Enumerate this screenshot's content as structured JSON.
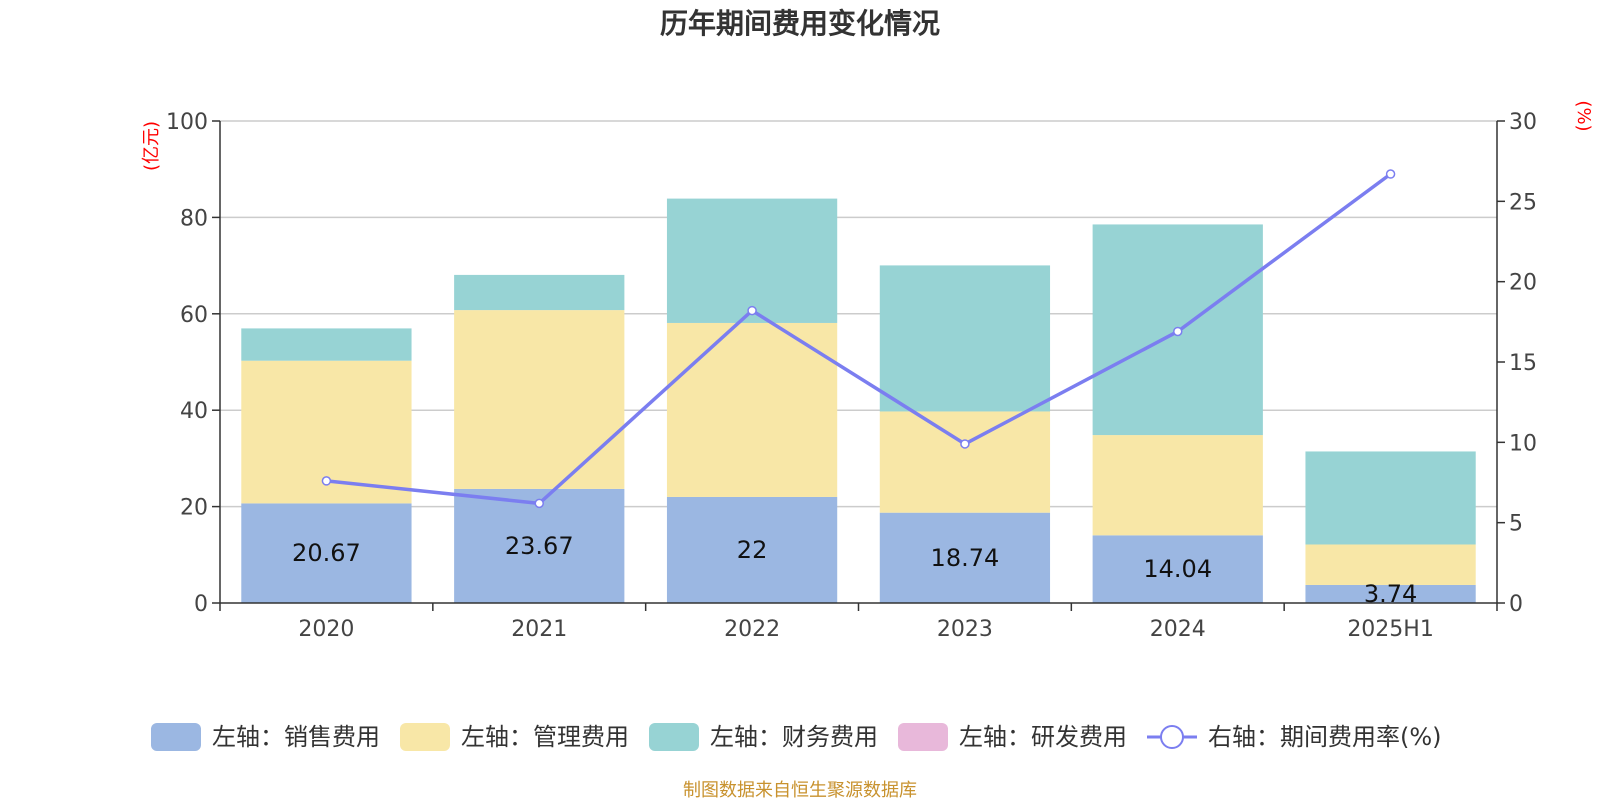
{
  "chart_data": {
    "type": "bar",
    "stacked": true,
    "title": "历年期间费用变化情况",
    "categories": [
      "2020",
      "2021",
      "2022",
      "2023",
      "2024",
      "2025H1"
    ],
    "y_left": {
      "unit": "(亿元)",
      "ylim": [
        0,
        100
      ],
      "ticks": [
        0,
        20,
        40,
        60,
        80,
        100
      ]
    },
    "y_right": {
      "unit": "(%)",
      "ylim": [
        0,
        30
      ],
      "ticks": [
        0,
        5,
        10,
        15,
        20,
        25,
        30
      ]
    },
    "grid": true,
    "legend_position": "bottom",
    "series": [
      {
        "name": "左轴：销售费用",
        "axis": "left",
        "type": "bar",
        "color": "#9bb7e2",
        "values": [
          20.67,
          23.67,
          22,
          18.74,
          14.04,
          3.74
        ],
        "labels": [
          "20.67",
          "23.67",
          "22",
          "18.74",
          "14.04",
          "3.74"
        ]
      },
      {
        "name": "左轴：管理费用",
        "axis": "left",
        "type": "bar",
        "color": "#f8e7a7",
        "values": [
          29.6,
          37.1,
          36.1,
          21.0,
          20.8,
          8.4
        ]
      },
      {
        "name": "左轴：财务费用",
        "axis": "left",
        "type": "bar",
        "color": "#97d3d4",
        "values": [
          6.7,
          7.3,
          25.8,
          30.3,
          43.7,
          19.3
        ]
      },
      {
        "name": "左轴：研发费用",
        "axis": "left",
        "type": "bar",
        "color": "#e8b8da",
        "values": [
          0,
          0,
          0,
          0,
          0,
          0
        ]
      },
      {
        "name": "右轴：期间费用率(%)",
        "axis": "right",
        "type": "line",
        "color": "#7b7ef0",
        "values": [
          7.6,
          6.2,
          18.2,
          9.9,
          16.9,
          26.7
        ]
      }
    ],
    "source": "制图数据来自恒生聚源数据库"
  }
}
